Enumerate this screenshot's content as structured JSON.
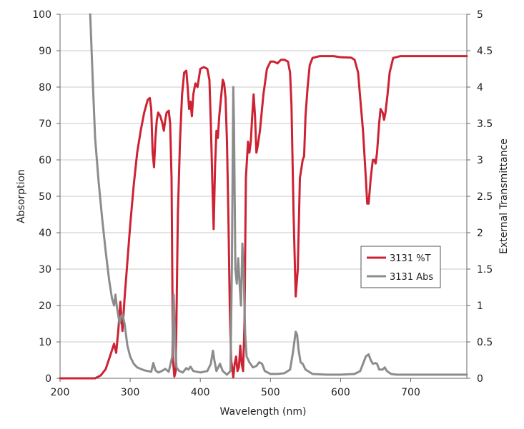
{
  "chart_data": {
    "type": "line",
    "xlabel": "Wavelength (nm)",
    "ylabel_left": "Absorption",
    "ylabel_right": "External Transmittance",
    "xlim": [
      200,
      780
    ],
    "xticks": [
      200,
      300,
      400,
      500,
      600,
      700
    ],
    "ylim_left": [
      0,
      100
    ],
    "yticks_left": [
      0,
      10,
      20,
      30,
      40,
      50,
      60,
      70,
      80,
      90,
      100
    ],
    "ylim_right": [
      0,
      5
    ],
    "yticks_right": [
      "0",
      "0.5",
      "1",
      "1.5",
      "2",
      "2.5",
      "3",
      "3.5",
      "4",
      "4.5",
      "5"
    ],
    "grid": "horizontal",
    "legend_position": "right-middle",
    "series": [
      {
        "name": "3131 %T",
        "axis": "left",
        "color": "#cc2233",
        "points": [
          [
            200,
            0
          ],
          [
            250,
            0
          ],
          [
            258,
            0.8
          ],
          [
            265,
            2.5
          ],
          [
            272,
            6.5
          ],
          [
            277,
            9.5
          ],
          [
            280,
            7
          ],
          [
            283,
            13
          ],
          [
            286,
            21
          ],
          [
            289,
            13
          ],
          [
            292,
            22
          ],
          [
            296,
            32
          ],
          [
            300,
            42
          ],
          [
            305,
            53
          ],
          [
            310,
            62
          ],
          [
            315,
            68
          ],
          [
            320,
            73
          ],
          [
            325,
            76.5
          ],
          [
            328,
            77
          ],
          [
            330,
            74
          ],
          [
            332,
            62
          ],
          [
            334,
            58
          ],
          [
            336,
            66
          ],
          [
            338,
            71
          ],
          [
            340,
            73
          ],
          [
            343,
            72
          ],
          [
            346,
            70
          ],
          [
            348,
            68
          ],
          [
            350,
            71
          ],
          [
            352,
            73
          ],
          [
            355,
            73.5
          ],
          [
            357,
            70
          ],
          [
            359,
            55
          ],
          [
            361,
            5
          ],
          [
            363,
            0.5
          ],
          [
            365,
            2
          ],
          [
            368,
            45
          ],
          [
            371,
            65
          ],
          [
            374,
            78
          ],
          [
            377,
            84
          ],
          [
            380,
            84.5
          ],
          [
            382,
            80
          ],
          [
            384,
            74
          ],
          [
            386,
            76
          ],
          [
            388,
            72
          ],
          [
            390,
            78
          ],
          [
            393,
            81
          ],
          [
            396,
            80
          ],
          [
            400,
            85
          ],
          [
            405,
            85.5
          ],
          [
            410,
            85
          ],
          [
            413,
            82
          ],
          [
            415,
            70
          ],
          [
            417,
            55
          ],
          [
            419,
            41
          ],
          [
            421,
            58
          ],
          [
            423,
            68
          ],
          [
            425,
            66
          ],
          [
            427,
            72
          ],
          [
            430,
            78
          ],
          [
            432,
            82
          ],
          [
            434,
            81
          ],
          [
            436,
            77
          ],
          [
            438,
            65
          ],
          [
            440,
            45
          ],
          [
            442,
            20
          ],
          [
            444,
            5
          ],
          [
            446,
            2
          ],
          [
            447,
            0.3
          ],
          [
            449,
            4
          ],
          [
            451,
            6
          ],
          [
            453,
            2
          ],
          [
            455,
            3
          ],
          [
            457,
            9
          ],
          [
            459,
            4
          ],
          [
            461,
            2
          ],
          [
            463,
            15
          ],
          [
            465,
            55
          ],
          [
            468,
            65
          ],
          [
            470,
            62
          ],
          [
            472,
            65
          ],
          [
            474,
            72
          ],
          [
            476,
            78
          ],
          [
            478,
            72
          ],
          [
            480,
            62
          ],
          [
            482,
            64
          ],
          [
            485,
            68
          ],
          [
            490,
            78
          ],
          [
            495,
            85
          ],
          [
            500,
            87
          ],
          [
            505,
            87
          ],
          [
            510,
            86.5
          ],
          [
            515,
            87.5
          ],
          [
            520,
            87.5
          ],
          [
            525,
            87
          ],
          [
            528,
            84
          ],
          [
            530,
            75
          ],
          [
            533,
            45
          ],
          [
            536,
            22.5
          ],
          [
            539,
            30
          ],
          [
            542,
            55
          ],
          [
            546,
            60
          ],
          [
            548,
            61
          ],
          [
            550,
            72
          ],
          [
            553,
            80
          ],
          [
            556,
            86
          ],
          [
            560,
            88
          ],
          [
            570,
            88.5
          ],
          [
            590,
            88.5
          ],
          [
            600,
            88.2
          ],
          [
            615,
            88.1
          ],
          [
            620,
            87.5
          ],
          [
            625,
            84
          ],
          [
            628,
            77
          ],
          [
            632,
            68
          ],
          [
            636,
            55
          ],
          [
            638,
            48
          ],
          [
            640,
            48
          ],
          [
            643,
            55
          ],
          [
            646,
            60
          ],
          [
            648,
            60
          ],
          [
            650,
            59
          ],
          [
            652,
            62
          ],
          [
            655,
            70
          ],
          [
            657,
            74
          ],
          [
            660,
            73
          ],
          [
            662,
            71
          ],
          [
            664,
            73
          ],
          [
            667,
            78
          ],
          [
            670,
            84
          ],
          [
            675,
            88
          ],
          [
            685,
            88.5
          ],
          [
            700,
            88.5
          ],
          [
            720,
            88.5
          ],
          [
            740,
            88.5
          ],
          [
            760,
            88.5
          ],
          [
            780,
            88.5
          ]
        ]
      },
      {
        "name": "3131 Abs",
        "axis": "right",
        "color": "#8c8c8c",
        "points": [
          [
            243,
            5
          ],
          [
            245,
            4.5
          ],
          [
            247,
            4
          ],
          [
            250,
            3.3
          ],
          [
            255,
            2.7
          ],
          [
            260,
            2.2
          ],
          [
            265,
            1.75
          ],
          [
            270,
            1.35
          ],
          [
            274,
            1.1
          ],
          [
            277,
            1.0
          ],
          [
            279,
            1.15
          ],
          [
            281,
            0.98
          ],
          [
            285,
            0.75
          ],
          [
            287,
            0.85
          ],
          [
            289,
            0.88
          ],
          [
            292,
            0.75
          ],
          [
            296,
            0.45
          ],
          [
            300,
            0.3
          ],
          [
            305,
            0.2
          ],
          [
            310,
            0.15
          ],
          [
            320,
            0.11
          ],
          [
            330,
            0.09
          ],
          [
            333,
            0.21
          ],
          [
            336,
            0.11
          ],
          [
            340,
            0.08
          ],
          [
            345,
            0.1
          ],
          [
            350,
            0.13
          ],
          [
            355,
            0.09
          ],
          [
            360,
            0.3
          ],
          [
            362,
            1.15
          ],
          [
            364,
            0.55
          ],
          [
            366,
            0.15
          ],
          [
            370,
            0.1
          ],
          [
            375,
            0.08
          ],
          [
            380,
            0.14
          ],
          [
            383,
            0.12
          ],
          [
            386,
            0.16
          ],
          [
            390,
            0.1
          ],
          [
            400,
            0.08
          ],
          [
            410,
            0.1
          ],
          [
            415,
            0.2
          ],
          [
            418,
            0.38
          ],
          [
            420,
            0.25
          ],
          [
            423,
            0.1
          ],
          [
            428,
            0.2
          ],
          [
            432,
            0.1
          ],
          [
            438,
            0.05
          ],
          [
            443,
            0.1
          ],
          [
            445,
            1.5
          ],
          [
            447,
            4.0
          ],
          [
            448,
            3.5
          ],
          [
            449,
            2.5
          ],
          [
            450,
            1.5
          ],
          [
            452,
            1.3
          ],
          [
            454,
            1.65
          ],
          [
            456,
            1.3
          ],
          [
            458,
            1.0
          ],
          [
            460,
            1.85
          ],
          [
            462,
            1.4
          ],
          [
            464,
            0.6
          ],
          [
            466,
            0.3
          ],
          [
            470,
            0.22
          ],
          [
            475,
            0.15
          ],
          [
            480,
            0.17
          ],
          [
            484,
            0.22
          ],
          [
            488,
            0.2
          ],
          [
            492,
            0.1
          ],
          [
            500,
            0.06
          ],
          [
            510,
            0.06
          ],
          [
            520,
            0.07
          ],
          [
            528,
            0.12
          ],
          [
            532,
            0.35
          ],
          [
            536,
            0.64
          ],
          [
            538,
            0.6
          ],
          [
            540,
            0.4
          ],
          [
            543,
            0.22
          ],
          [
            546,
            0.2
          ],
          [
            550,
            0.12
          ],
          [
            560,
            0.06
          ],
          [
            580,
            0.05
          ],
          [
            600,
            0.05
          ],
          [
            620,
            0.06
          ],
          [
            628,
            0.1
          ],
          [
            632,
            0.2
          ],
          [
            636,
            0.3
          ],
          [
            640,
            0.33
          ],
          [
            643,
            0.25
          ],
          [
            646,
            0.2
          ],
          [
            650,
            0.21
          ],
          [
            652,
            0.2
          ],
          [
            655,
            0.12
          ],
          [
            660,
            0.12
          ],
          [
            663,
            0.15
          ],
          [
            666,
            0.1
          ],
          [
            672,
            0.06
          ],
          [
            680,
            0.05
          ],
          [
            700,
            0.05
          ],
          [
            740,
            0.05
          ],
          [
            780,
            0.05
          ]
        ]
      }
    ]
  }
}
